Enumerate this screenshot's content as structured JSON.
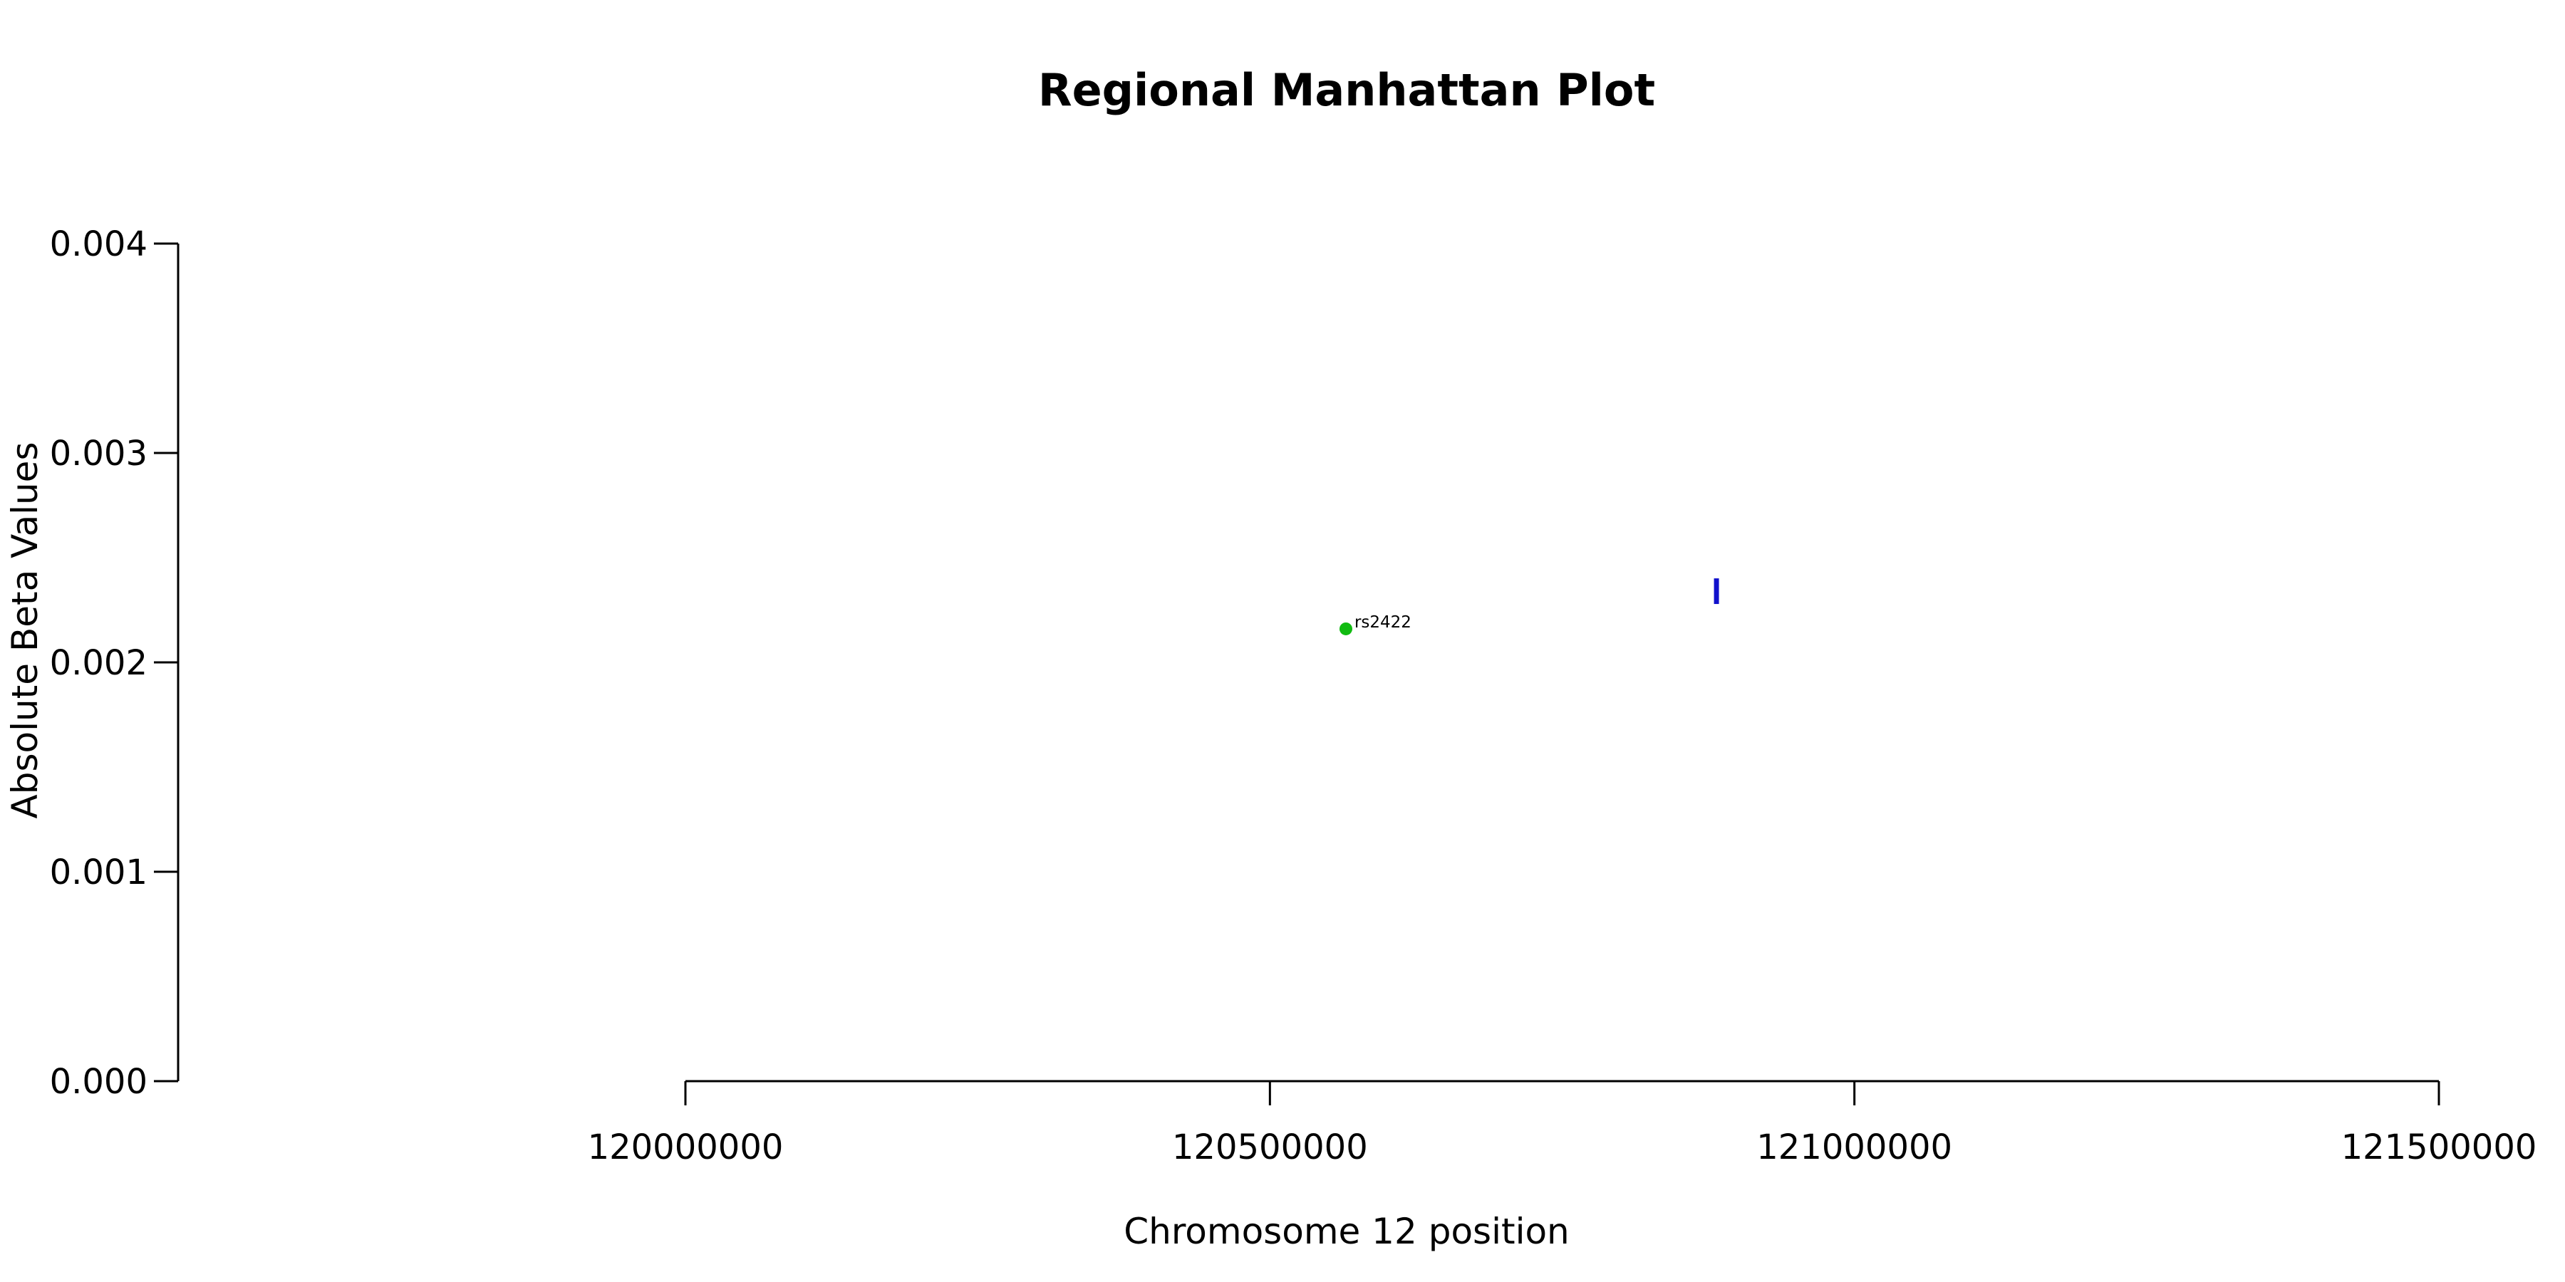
{
  "chart_data": {
    "type": "scatter",
    "title": "Regional Manhattan Plot",
    "xlabel": "Chromosome 12 position",
    "ylabel": "Absolute Beta Values",
    "xlim": [
      120000000,
      121500000
    ],
    "ylim": [
      0,
      0.004
    ],
    "x_ticks": [
      120000000,
      120500000,
      121000000,
      121500000
    ],
    "x_tick_labels": [
      "120000000",
      "120500000",
      "121000000",
      "121500000"
    ],
    "y_ticks": [
      0,
      0.001,
      0.002,
      0.003,
      0.004
    ],
    "y_tick_labels": [
      "0.000",
      "0.001",
      "0.002",
      "0.003",
      "0.004"
    ],
    "grid": false,
    "series": [
      {
        "marker": "circle",
        "color": "#11bb11",
        "points": [
          {
            "x": 120565000,
            "y": 0.00216,
            "label": "rs2422"
          }
        ]
      },
      {
        "marker": "vertical-bar",
        "color": "#1111cc",
        "points": [
          {
            "x": 120882000,
            "y": 0.00234,
            "label": ""
          }
        ]
      }
    ]
  }
}
